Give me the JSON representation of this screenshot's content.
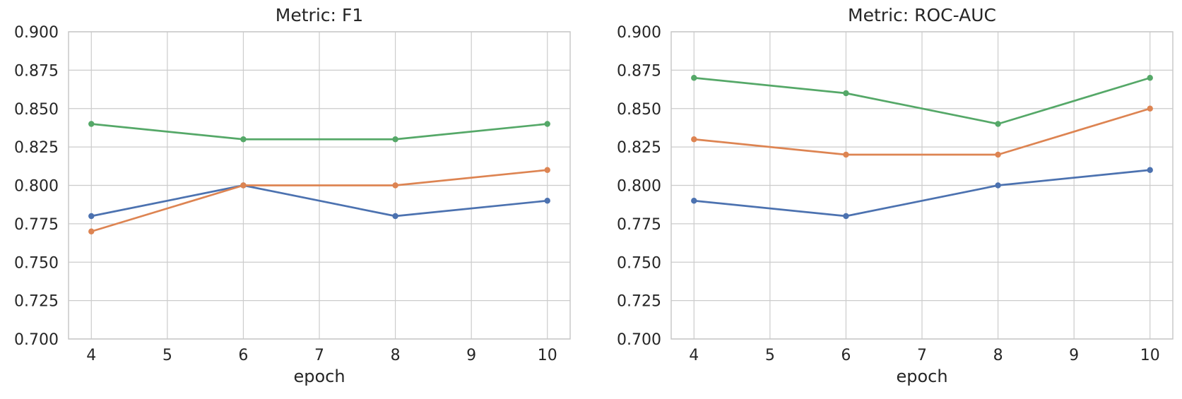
{
  "figure": {
    "background": "#ffffff"
  },
  "style": {
    "grid_color": "#cccccc",
    "spine_color": "#c8c8c8",
    "text_color": "#262626",
    "series_colors": {
      "blue": "#4C72B0",
      "orange": "#DD8452",
      "green": "#55A868"
    }
  },
  "chart_data": [
    {
      "type": "line",
      "title": "Metric: F1",
      "xlabel": "epoch",
      "ylabel": "",
      "grid": true,
      "legend": "none",
      "x": [
        4,
        6,
        8,
        10
      ],
      "xticks": [
        "4",
        "5",
        "6",
        "7",
        "8",
        "9",
        "10"
      ],
      "yticks": [
        "0.700",
        "0.725",
        "0.750",
        "0.775",
        "0.800",
        "0.825",
        "0.850",
        "0.875",
        "0.900"
      ],
      "xlim": [
        3.7,
        10.3
      ],
      "ylim": [
        0.7,
        0.9
      ],
      "series": [
        {
          "name": "blue-series",
          "color": "#4C72B0",
          "values": [
            0.78,
            0.8,
            0.78,
            0.79
          ]
        },
        {
          "name": "orange-series",
          "color": "#DD8452",
          "values": [
            0.77,
            0.8,
            0.8,
            0.81
          ]
        },
        {
          "name": "green-series",
          "color": "#55A868",
          "values": [
            0.84,
            0.83,
            0.83,
            0.84
          ]
        }
      ]
    },
    {
      "type": "line",
      "title": "Metric: ROC-AUC",
      "xlabel": "epoch",
      "ylabel": "",
      "grid": true,
      "legend": "none",
      "x": [
        4,
        6,
        8,
        10
      ],
      "xticks": [
        "4",
        "5",
        "6",
        "7",
        "8",
        "9",
        "10"
      ],
      "yticks": [
        "0.700",
        "0.725",
        "0.750",
        "0.775",
        "0.800",
        "0.825",
        "0.850",
        "0.875",
        "0.900"
      ],
      "xlim": [
        3.7,
        10.3
      ],
      "ylim": [
        0.7,
        0.9
      ],
      "series": [
        {
          "name": "blue-series",
          "color": "#4C72B0",
          "values": [
            0.79,
            0.78,
            0.8,
            0.81
          ]
        },
        {
          "name": "orange-series",
          "color": "#DD8452",
          "values": [
            0.83,
            0.82,
            0.82,
            0.85
          ]
        },
        {
          "name": "green-series",
          "color": "#55A868",
          "values": [
            0.87,
            0.86,
            0.84,
            0.87
          ]
        }
      ]
    }
  ]
}
